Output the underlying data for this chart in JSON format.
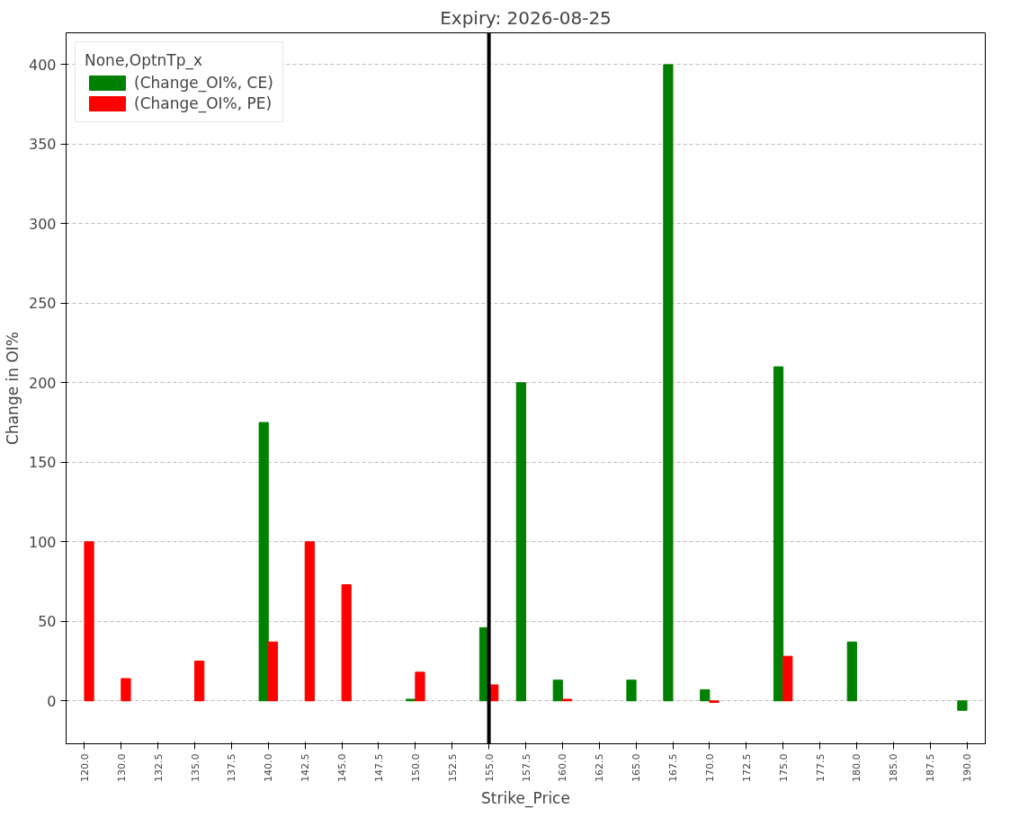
{
  "chart_data": {
    "type": "bar",
    "title": "Expiry: 2026-08-25",
    "xlabel": "Strike_Price",
    "ylabel": "Change in OI%",
    "legend_title": "None,OptnTp_x",
    "categories": [
      "120.0",
      "130.0",
      "132.5",
      "135.0",
      "137.5",
      "140.0",
      "142.5",
      "145.0",
      "147.5",
      "150.0",
      "152.5",
      "155.0",
      "157.5",
      "160.0",
      "162.5",
      "165.0",
      "167.5",
      "170.0",
      "172.5",
      "175.0",
      "177.5",
      "180.0",
      "185.0",
      "187.5",
      "190.0"
    ],
    "series": [
      {
        "name": "(Change_OI%, CE)",
        "color": "#008000",
        "values": [
          null,
          null,
          null,
          null,
          null,
          175,
          null,
          null,
          null,
          1,
          null,
          46,
          200,
          13,
          null,
          13,
          400,
          7,
          null,
          210,
          null,
          37,
          null,
          null,
          -6
        ]
      },
      {
        "name": "(Change_OI%, PE)",
        "color": "#ff0000",
        "values": [
          100,
          14,
          null,
          25,
          null,
          37,
          100,
          73,
          null,
          18,
          null,
          10,
          null,
          1,
          null,
          null,
          null,
          -1,
          null,
          28,
          null,
          null,
          null,
          null,
          null
        ]
      }
    ],
    "ylim": [
      -27,
      420
    ],
    "yticks": [
      0,
      50,
      100,
      150,
      200,
      250,
      300,
      350,
      400
    ],
    "grid": "y",
    "legend": "top left",
    "ref_lines": [
      {
        "axis": "x",
        "value": "155.0",
        "color": "#000000",
        "line_style": "solid"
      }
    ]
  }
}
